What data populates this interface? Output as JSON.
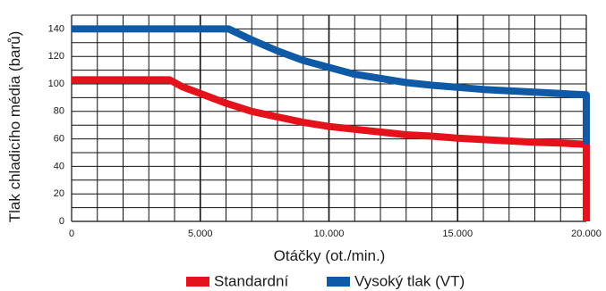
{
  "chart_data": {
    "type": "line",
    "xlabel": "Otáčky (ot./min.)",
    "ylabel": "Tlak chladicího média (barů)",
    "xlim": [
      0,
      20000
    ],
    "ylim": [
      0,
      150
    ],
    "x_ticks": [
      0,
      5000,
      10000,
      15000,
      20000
    ],
    "x_tick_labels": [
      "0",
      "5.000",
      "10.000",
      "15.000",
      "20.000"
    ],
    "y_ticks": [
      0,
      20,
      40,
      60,
      80,
      100,
      120,
      140
    ],
    "y_tick_labels": [
      "0",
      "20",
      "40",
      "60",
      "80",
      "100",
      "120",
      "140"
    ],
    "grid": true,
    "legend_position": "bottom",
    "series": [
      {
        "name": "Standardní",
        "color": "#e4121b",
        "points": [
          [
            0,
            103
          ],
          [
            3800,
            103
          ],
          [
            4300,
            98
          ],
          [
            5000,
            93
          ],
          [
            6000,
            86
          ],
          [
            7000,
            80
          ],
          [
            8000,
            76
          ],
          [
            9000,
            72
          ],
          [
            10000,
            69
          ],
          [
            11000,
            67
          ],
          [
            12000,
            65
          ],
          [
            13000,
            63
          ],
          [
            14000,
            62
          ],
          [
            15000,
            60.5
          ],
          [
            16000,
            59.5
          ],
          [
            17000,
            58.5
          ],
          [
            18000,
            57.5
          ],
          [
            19000,
            57
          ],
          [
            20000,
            56
          ],
          [
            20000,
            0
          ]
        ]
      },
      {
        "name": "Vysoký tlak (VT)",
        "color": "#0f5aa6",
        "points": [
          [
            0,
            140
          ],
          [
            6100,
            140
          ],
          [
            7000,
            132
          ],
          [
            8000,
            124
          ],
          [
            9000,
            117
          ],
          [
            10000,
            112
          ],
          [
            11000,
            107
          ],
          [
            12000,
            104
          ],
          [
            13000,
            101
          ],
          [
            14000,
            99
          ],
          [
            15000,
            97.5
          ],
          [
            16000,
            96
          ],
          [
            17000,
            95
          ],
          [
            18000,
            94
          ],
          [
            19000,
            93
          ],
          [
            20000,
            92
          ],
          [
            20000,
            56
          ]
        ]
      }
    ]
  }
}
